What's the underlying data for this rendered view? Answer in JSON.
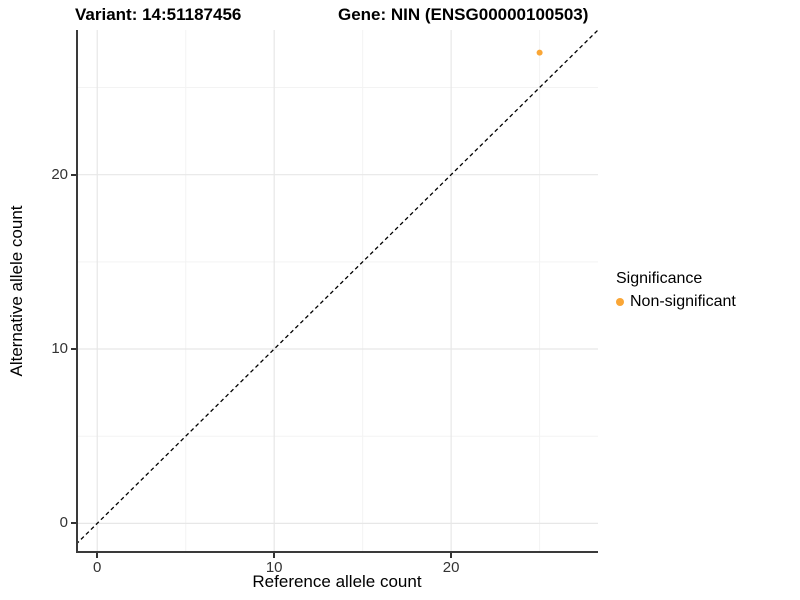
{
  "titles": {
    "variant": "Variant: 14:51187456",
    "gene": "Gene: NIN (ENSG00000100503)"
  },
  "chart_data": {
    "type": "scatter",
    "xlabel": "Reference allele count",
    "ylabel": "Alternative allele count",
    "xlim": [
      -1.2,
      28.3
    ],
    "ylim": [
      -1.7,
      28.3
    ],
    "x_ticks": [
      0,
      10,
      20
    ],
    "y_ticks": [
      0,
      10,
      20
    ],
    "x_minor_ticks": [
      5,
      15,
      25
    ],
    "y_minor_ticks": [
      5,
      15,
      25
    ],
    "grid": "major+minor on white background",
    "identity_line": {
      "slope": 1,
      "intercept": 0,
      "style": "dashed",
      "color": "#000000"
    },
    "points": [
      {
        "x": 25,
        "y": 27,
        "series": "Non-significant",
        "color": "#FAA636"
      }
    ],
    "legend": {
      "title": "Significance",
      "position": "right",
      "entries": [
        {
          "label": "Non-significant",
          "color": "#FAA636"
        }
      ]
    },
    "colors": {
      "point_orange": "#FAA636",
      "axis_line": "#3a3a3a",
      "major_grid": "#e7e7e7",
      "minor_grid": "#f3f3f3"
    }
  }
}
